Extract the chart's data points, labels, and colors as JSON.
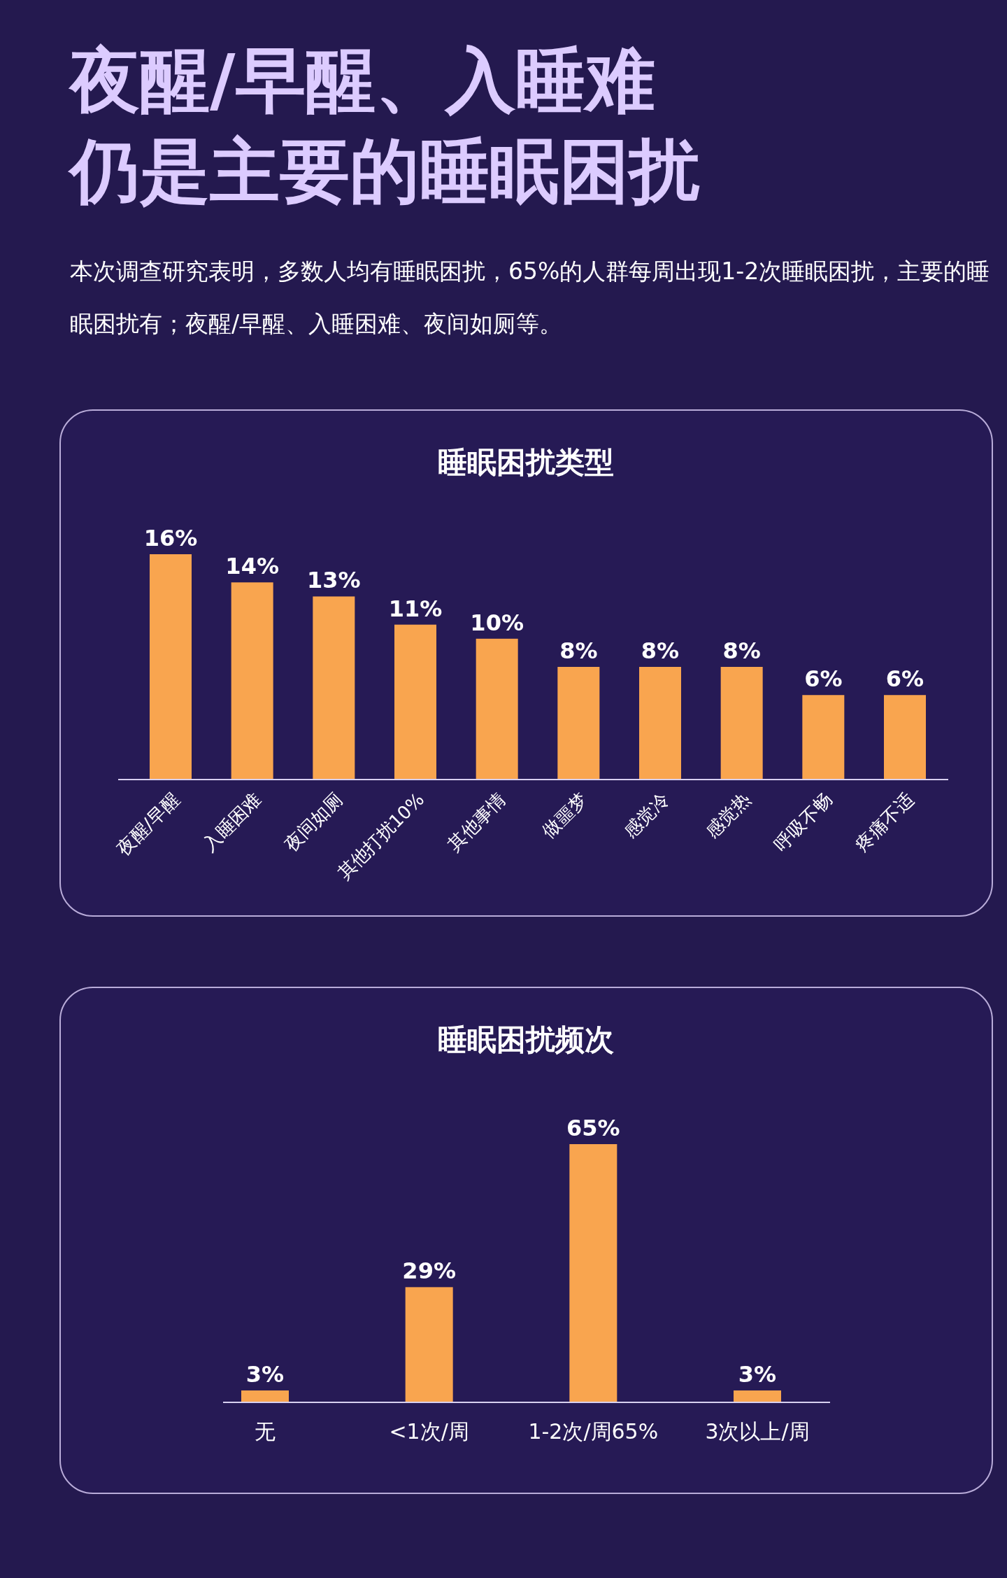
{
  "chart_data": [
    {
      "type": "other",
      "title": "夜醒/早醒、入睡难仍是主要的睡眠困扰",
      "subtitle": "本次调查研究表明，多数人均有睡眠困扰，65%的人群每周出现1-2次睡眠困扰，主要的睡眠困扰有；夜醒/早醒、入睡困难、夜间如厕等。"
    },
    {
      "type": "bar",
      "title": "睡眠困扰类型",
      "categories": [
        "夜醒/早醒",
        "入睡困难",
        "夜间如厕",
        "其他打扰10%",
        "其他事情",
        "做噩梦",
        "感觉冷",
        "感觉热",
        "呼吸不畅",
        "疼痛不适"
      ],
      "values": [
        16,
        14,
        13,
        11,
        10,
        8,
        8,
        8,
        6,
        6
      ],
      "color": "#f9a54f",
      "value_labels": [
        "16%",
        "14%",
        "13%",
        "11%",
        "10%",
        "8%",
        "8%",
        "8%",
        "6%",
        "6%"
      ]
    },
    {
      "type": "bar",
      "title": "睡眠困扰频次",
      "categories": [
        "无",
        "<1次/周",
        "1-2次/周65%",
        "3次以上/周"
      ],
      "values": [
        3,
        29,
        65,
        3
      ],
      "color": "#f9a54f",
      "value_labels": [
        "3%",
        "29%",
        "65%",
        "3%"
      ]
    }
  ]
}
